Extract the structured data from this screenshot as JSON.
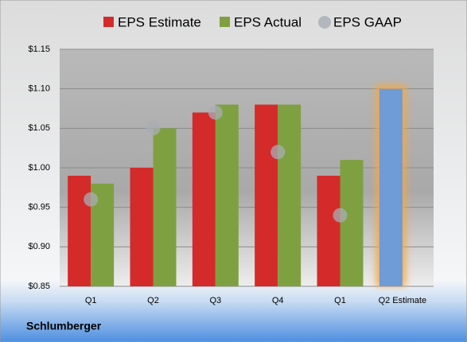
{
  "chart_data": {
    "type": "bar",
    "caption": "Schlumberger",
    "categories": [
      "Q1",
      "Q2",
      "Q3",
      "Q4",
      "Q1",
      "Q2 Estimate"
    ],
    "series": [
      {
        "name": "EPS Estimate",
        "color": "#d42a2a",
        "values": [
          0.99,
          1.0,
          1.07,
          1.08,
          0.99,
          1.1
        ],
        "point_colors": [
          "#d42a2a",
          "#d42a2a",
          "#d42a2a",
          "#d42a2a",
          "#d42a2a",
          "#6f9bd6"
        ],
        "highlight_glow": "#f5a742"
      },
      {
        "name": "EPS Actual",
        "color": "#7fa040",
        "values": [
          0.98,
          1.05,
          1.08,
          1.08,
          1.01,
          null
        ]
      },
      {
        "name": "EPS GAAP",
        "color": "#a8adb4",
        "marker": "circle",
        "values": [
          0.96,
          1.05,
          1.07,
          1.02,
          0.94,
          null
        ]
      }
    ],
    "ylim": [
      0.85,
      1.15
    ],
    "yticks": [
      {
        "value": 0.85,
        "label": "$0.85"
      },
      {
        "value": 0.9,
        "label": "$0.90"
      },
      {
        "value": 0.95,
        "label": "$0.95"
      },
      {
        "value": 1.0,
        "label": "$1.00"
      },
      {
        "value": 1.05,
        "label": "$1.05"
      },
      {
        "value": 1.1,
        "label": "$1.10"
      },
      {
        "value": 1.15,
        "label": "$1.15"
      }
    ],
    "grid": true,
    "legend": "top"
  }
}
